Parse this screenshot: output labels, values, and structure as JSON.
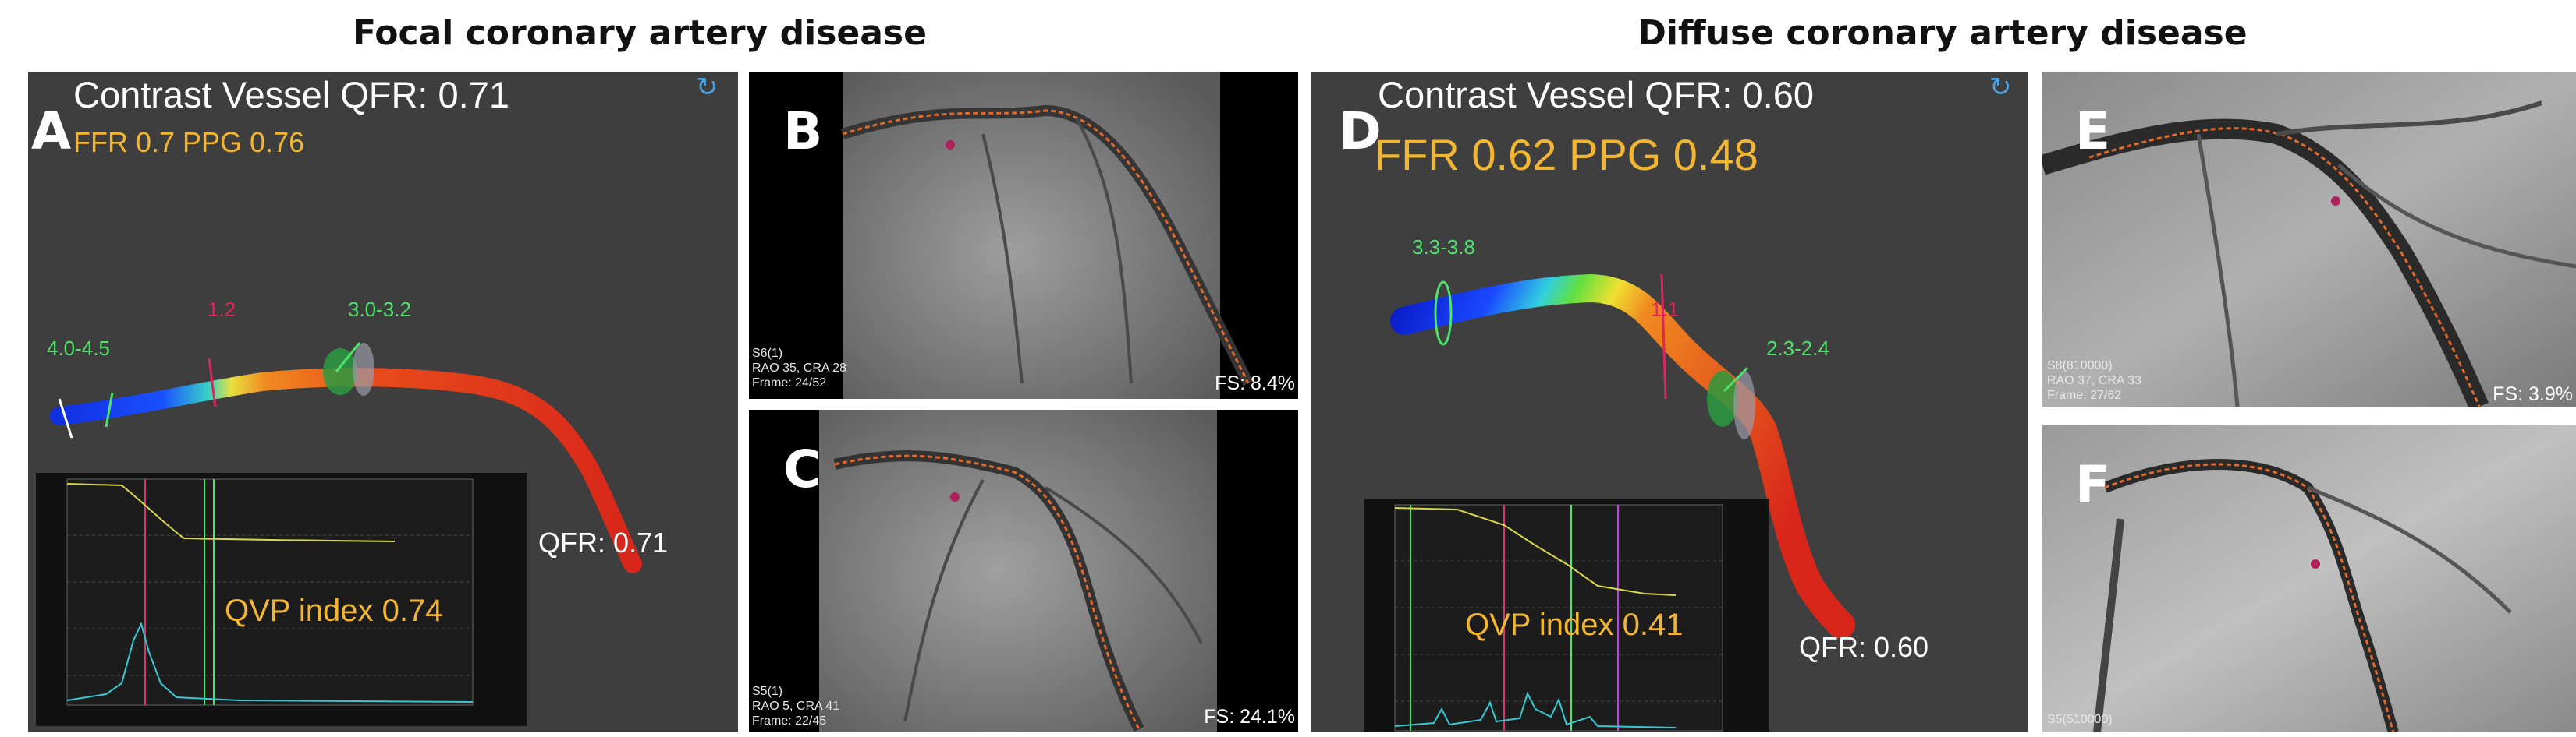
{
  "headings": {
    "focal": "Focal coronary artery disease",
    "diffuse": "Diffuse coronary artery disease"
  },
  "panel_a": {
    "label": "A",
    "title": "Contrast Vessel QFR: 0.71",
    "ffr_ppg": "FFR 0.7 PPG 0.76",
    "diameter_prox": "4.0-4.5",
    "lesion_marker": "1.2",
    "diameter_dist": "3.0-3.2",
    "qfr_end": "QFR: 0.71",
    "qvp": "QVP index 0.74",
    "rotate_icon": "rotate-icon"
  },
  "panel_b": {
    "label": "B",
    "meta": [
      "S6(1)",
      "RAO 35, CRA 28",
      "Frame: 24/52"
    ],
    "fs": "FS: 8.4%"
  },
  "panel_c": {
    "label": "C",
    "meta": [
      "S5(1)",
      "RAO 5, CRA 41",
      "Frame: 22/45"
    ],
    "fs": "FS: 24.1%"
  },
  "panel_d": {
    "label": "D",
    "title": "Contrast Vessel QFR: 0.60",
    "ffr_ppg": "FFR 0.62 PPG 0.48",
    "diameter_prox": "3.3-3.8",
    "lesion_marker": "1.1",
    "diameter_dist": "2.3-2.4",
    "qfr_end": "QFR: 0.60",
    "qvp": "QVP index 0.41",
    "rotate_icon": "rotate-icon"
  },
  "panel_e": {
    "label": "E",
    "meta": [
      "S8(810000)",
      "RAO 37, CRA 33",
      "Frame: 27/62"
    ],
    "fs": "FS: 3.9%"
  },
  "panel_f": {
    "label": "F",
    "meta": [
      "S5(510000)"
    ],
    "fs": ""
  },
  "colors": {
    "accent": "#f2b632",
    "annotation_green": "#4ee36a",
    "annotation_red": "#e0245e",
    "panel_bg": "#3f3f3f"
  }
}
